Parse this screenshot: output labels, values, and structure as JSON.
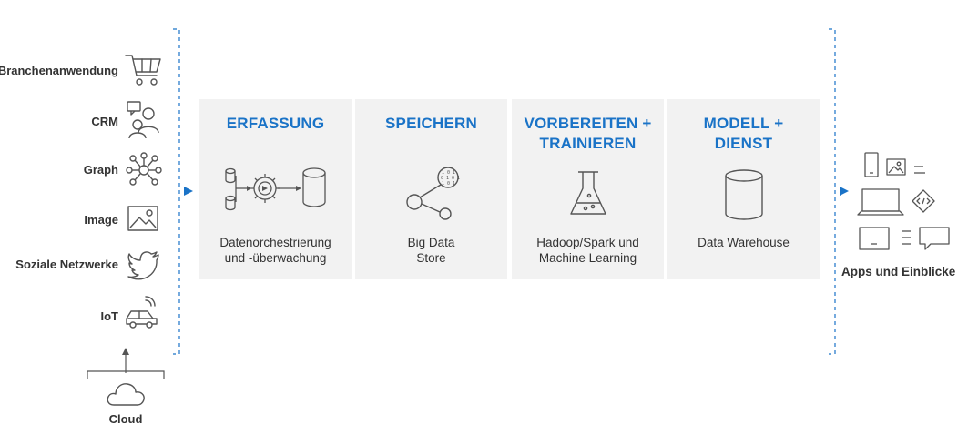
{
  "sources": [
    {
      "label": "Branchenanwendung",
      "icon": "shopping-cart-icon"
    },
    {
      "label": "CRM",
      "icon": "crm-users-icon"
    },
    {
      "label": "Graph",
      "icon": "graph-network-icon"
    },
    {
      "label": "Image",
      "icon": "image-icon"
    },
    {
      "label": "Soziale Netzwerke",
      "icon": "twitter-bird-icon"
    },
    {
      "label": "IoT",
      "icon": "connected-car-icon"
    }
  ],
  "cloud": {
    "label": "Cloud",
    "icon": "cloud-icon"
  },
  "stages": [
    {
      "title": "ERFASSUNG",
      "desc_line1": "Datenorchestrierung",
      "desc_line2": "und -überwachung",
      "icon": "orchestration-icon"
    },
    {
      "title": "SPEICHERN",
      "desc_line1": "Big Data",
      "desc_line2": "Store",
      "icon": "big-data-store-icon"
    },
    {
      "title_line1": "VORBEREITEN +",
      "title_line2": "TRAINIEREN",
      "desc_line1": "Hadoop/Spark und",
      "desc_line2": "Machine Learning",
      "icon": "flask-icon"
    },
    {
      "title_line1": "MODELL +",
      "title_line2": "DIENST",
      "desc_line1": "Data Warehouse",
      "icon": "database-cylinder-icon"
    }
  ],
  "output": {
    "label": "Apps und Einblicke"
  },
  "colors": {
    "accent": "#1a73c7",
    "panel_bg": "#f2f2f2",
    "icon_stroke": "#555555",
    "text": "#333333"
  }
}
